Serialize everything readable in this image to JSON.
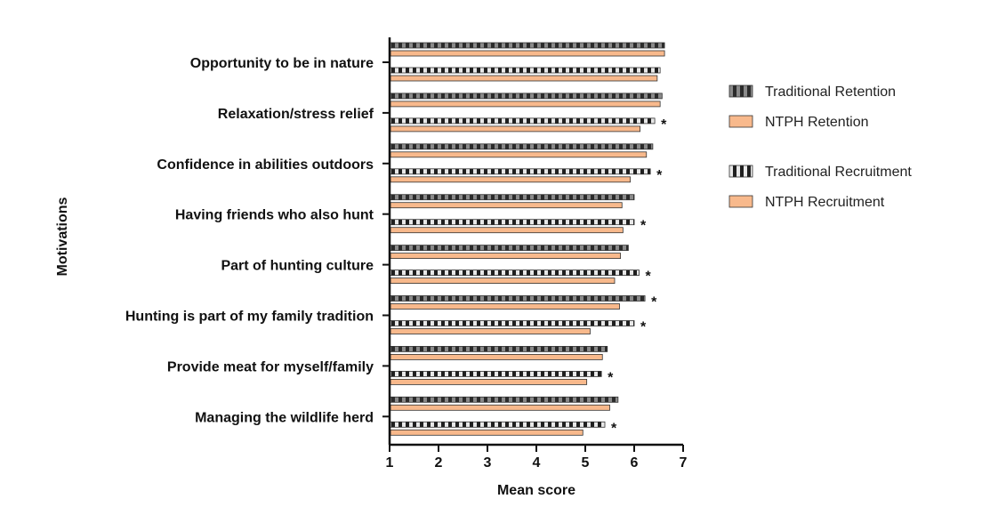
{
  "chart_data": {
    "type": "bar",
    "orientation": "horizontal",
    "xlabel": "Mean score",
    "ylabel": "Motivations",
    "xlim": [
      1,
      7
    ],
    "xticks": [
      "1",
      "2",
      "3",
      "4",
      "5",
      "6",
      "7"
    ],
    "categories": [
      "Opportunity to be in nature",
      "Relaxation/stress relief",
      "Confidence in abilities outdoors",
      "Having friends who also hunt",
      "Part of hunting culture",
      "Hunting is part of my family tradition",
      "Provide meat for myself/family",
      "Managing the wildlife herd"
    ],
    "series": [
      {
        "name": "Traditional Retention",
        "pattern": "dark-stripes",
        "values": [
          6.62,
          6.57,
          6.38,
          6.0,
          5.88,
          6.22,
          5.45,
          5.67
        ],
        "significant": [
          false,
          false,
          false,
          false,
          false,
          true,
          false,
          false
        ]
      },
      {
        "name": "NTPH Retention",
        "pattern": "orange",
        "values": [
          6.62,
          6.53,
          6.25,
          5.75,
          5.72,
          5.7,
          5.35,
          5.5
        ]
      },
      {
        "name": "Traditional Recruitment",
        "pattern": "light-stripes",
        "values": [
          6.53,
          6.42,
          6.33,
          6.0,
          6.1,
          6.0,
          5.33,
          5.4
        ],
        "significant": [
          false,
          true,
          true,
          true,
          true,
          true,
          true,
          true
        ]
      },
      {
        "name": "NTPH Recruitment",
        "pattern": "orange",
        "values": [
          6.47,
          6.12,
          5.92,
          5.77,
          5.6,
          5.1,
          5.03,
          4.95
        ]
      }
    ],
    "significance_marker": "*",
    "legend": {
      "placement": "right",
      "items": [
        {
          "label": "Traditional Retention",
          "pattern": "dark-stripes"
        },
        {
          "label": "NTPH Retention",
          "pattern": "orange"
        },
        {
          "label": "Traditional Recruitment",
          "pattern": "light-stripes"
        },
        {
          "label": "NTPH Recruitment",
          "pattern": "orange"
        }
      ]
    },
    "colors": {
      "orange": "#f8b98c",
      "dark_stripe_a": "#2b2b2b",
      "dark_stripe_b": "#8a8a8a",
      "light_stripe_a": "#1f1f1f",
      "light_stripe_b": "#e8e8e8",
      "axis": "#111111"
    },
    "grid": false
  }
}
